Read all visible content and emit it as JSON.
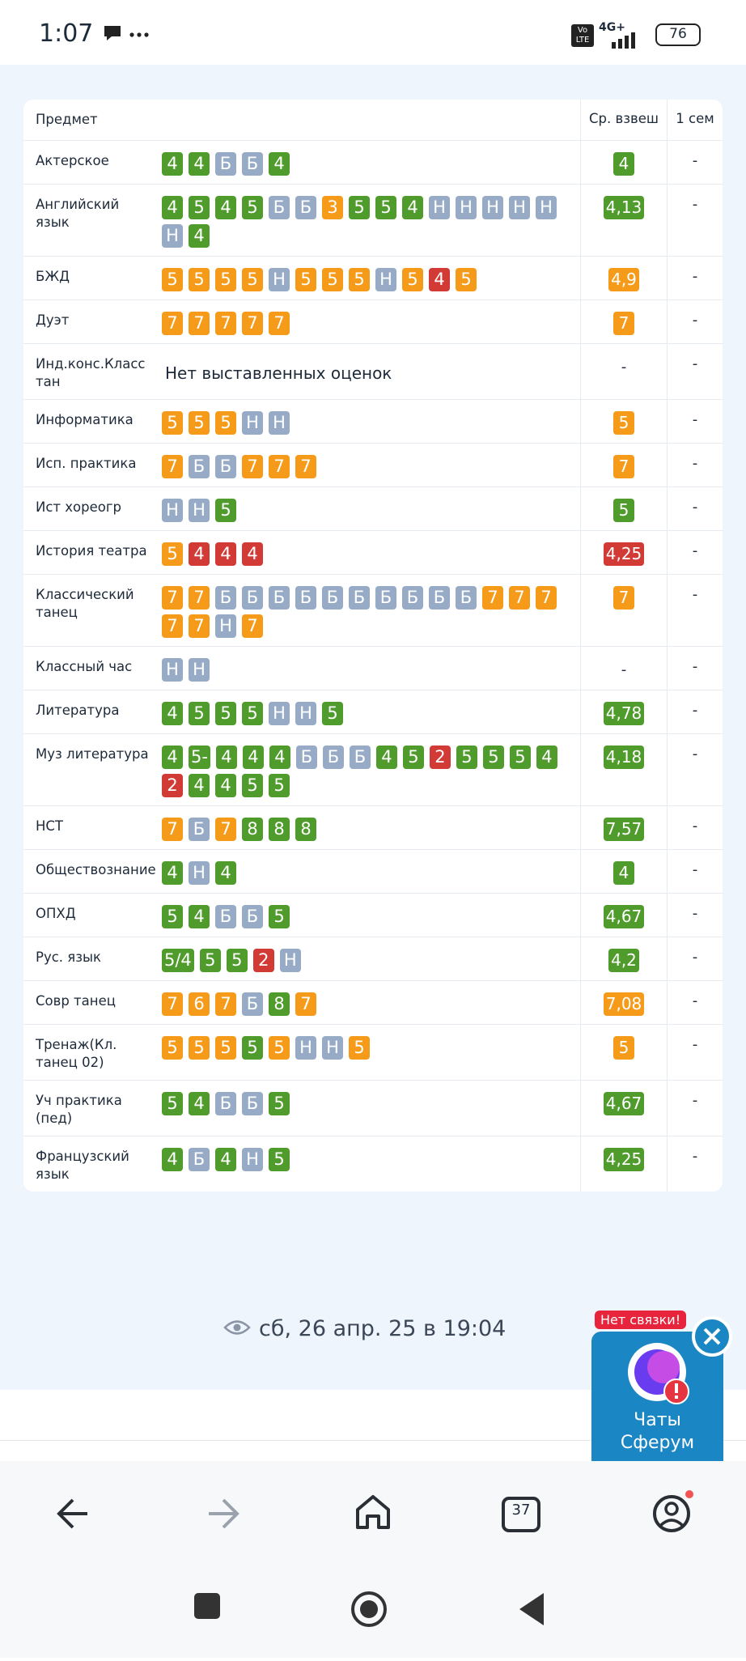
{
  "status_bar": {
    "time": "1:07",
    "volte": "Vo LTE",
    "network": "4G+",
    "battery": "76"
  },
  "palette": {
    "green": "#4f9b2c",
    "orange": "#f59b19",
    "red": "#d23a36",
    "slate": "#97abc7"
  },
  "table": {
    "headers": [
      "Предмет",
      "Ср. взвеш",
      "1 сем"
    ],
    "rows": [
      {
        "subject": "Актерское",
        "grades": [
          "4",
          "4",
          "Б",
          "Б",
          "4"
        ],
        "grade_colors": [
          "green",
          "green",
          "slate",
          "slate",
          "green"
        ],
        "average": "4",
        "average_color": "green",
        "semester": "-"
      },
      {
        "subject": "Английский язык",
        "grades": [
          "4",
          "5",
          "4",
          "5",
          "Б",
          "Б",
          "3",
          "5",
          "5",
          "4",
          "Н",
          "Н",
          "Н",
          "Н",
          "Н",
          "Н",
          "4"
        ],
        "grade_colors": [
          "green",
          "green",
          "green",
          "green",
          "slate",
          "slate",
          "orange",
          "green",
          "green",
          "green",
          "slate",
          "slate",
          "slate",
          "slate",
          "slate",
          "slate",
          "green"
        ],
        "average": "4,13",
        "average_color": "green",
        "semester": "-"
      },
      {
        "subject": "БЖД",
        "grades": [
          "5",
          "5",
          "5",
          "5",
          "Н",
          "5",
          "5",
          "5",
          "Н",
          "5",
          "4",
          "5"
        ],
        "grade_colors": [
          "orange",
          "orange",
          "orange",
          "orange",
          "slate",
          "orange",
          "orange",
          "orange",
          "slate",
          "orange",
          "red",
          "orange"
        ],
        "average": "4,9",
        "average_color": "orange",
        "semester": "-"
      },
      {
        "subject": "Дуэт",
        "grades": [
          "7",
          "7",
          "7",
          "7",
          "7"
        ],
        "grade_colors": [
          "orange",
          "orange",
          "orange",
          "orange",
          "orange"
        ],
        "average": "7",
        "average_color": "orange",
        "semester": "-"
      },
      {
        "subject": "Инд.конс.Класс тан",
        "note": "Нет выставленных оценок",
        "average": "-",
        "semester": "-"
      },
      {
        "subject": "Информатика",
        "grades": [
          "5",
          "5",
          "5",
          "Н",
          "Н"
        ],
        "grade_colors": [
          "orange",
          "orange",
          "orange",
          "slate",
          "slate"
        ],
        "average": "5",
        "average_color": "orange",
        "semester": "-"
      },
      {
        "subject": "Исп. практика",
        "grades": [
          "7",
          "Б",
          "Б",
          "7",
          "7",
          "7"
        ],
        "grade_colors": [
          "orange",
          "slate",
          "slate",
          "orange",
          "orange",
          "orange"
        ],
        "average": "7",
        "average_color": "orange",
        "semester": "-"
      },
      {
        "subject": "Ист хореогр",
        "grades": [
          "Н",
          "Н",
          "5"
        ],
        "grade_colors": [
          "slate",
          "slate",
          "green"
        ],
        "average": "5",
        "average_color": "green",
        "semester": "-"
      },
      {
        "subject": "История театра",
        "grades": [
          "5",
          "4",
          "4",
          "4"
        ],
        "grade_colors": [
          "orange",
          "red",
          "red",
          "red"
        ],
        "average": "4,25",
        "average_color": "red",
        "semester": "-"
      },
      {
        "subject": "Классический танец",
        "grades": [
          "7",
          "7",
          "Б",
          "Б",
          "Б",
          "Б",
          "Б",
          "Б",
          "Б",
          "Б",
          "Б",
          "Б",
          "7",
          "7",
          "7",
          "7",
          "7",
          "Н",
          "7"
        ],
        "grade_colors": [
          "orange",
          "orange",
          "slate",
          "slate",
          "slate",
          "slate",
          "slate",
          "slate",
          "slate",
          "slate",
          "slate",
          "slate",
          "orange",
          "orange",
          "orange",
          "orange",
          "orange",
          "slate",
          "orange"
        ],
        "average": "7",
        "average_color": "orange",
        "semester": "-"
      },
      {
        "subject": "Классный час",
        "grades": [
          "Н",
          "Н"
        ],
        "grade_colors": [
          "slate",
          "slate"
        ],
        "average": "-",
        "semester": "-"
      },
      {
        "subject": "Литература",
        "grades": [
          "4",
          "5",
          "5",
          "5",
          "Н",
          "Н",
          "5"
        ],
        "grade_colors": [
          "green",
          "green",
          "green",
          "green",
          "slate",
          "slate",
          "green"
        ],
        "average": "4,78",
        "average_color": "green",
        "semester": "-"
      },
      {
        "subject": "Муз литература",
        "grades": [
          "4",
          "5-",
          "4",
          "4",
          "4",
          "Б",
          "Б",
          "Б",
          "4",
          "5",
          "2",
          "5",
          "5",
          "5",
          "4",
          "2",
          "4",
          "4",
          "5",
          "5"
        ],
        "grade_colors": [
          "green",
          "green",
          "green",
          "green",
          "green",
          "slate",
          "slate",
          "slate",
          "green",
          "green",
          "red",
          "green",
          "green",
          "green",
          "green",
          "red",
          "green",
          "green",
          "green",
          "green"
        ],
        "average": "4,18",
        "average_color": "green",
        "semester": "-"
      },
      {
        "subject": "НСТ",
        "grades": [
          "7",
          "Б",
          "7",
          "8",
          "8",
          "8"
        ],
        "grade_colors": [
          "orange",
          "slate",
          "orange",
          "green",
          "green",
          "green"
        ],
        "average": "7,57",
        "average_color": "green",
        "semester": "-"
      },
      {
        "subject": "Обществознание",
        "grades": [
          "4",
          "Н",
          "4"
        ],
        "grade_colors": [
          "green",
          "slate",
          "green"
        ],
        "average": "4",
        "average_color": "green",
        "semester": "-"
      },
      {
        "subject": "ОПХД",
        "grades": [
          "5",
          "4",
          "Б",
          "Б",
          "5"
        ],
        "grade_colors": [
          "green",
          "green",
          "slate",
          "slate",
          "green"
        ],
        "average": "4,67",
        "average_color": "green",
        "semester": "-"
      },
      {
        "subject": "Рус. язык",
        "grades": [
          "5/4",
          "5",
          "5",
          "2",
          "Н"
        ],
        "grade_colors": [
          "green",
          "green",
          "green",
          "red",
          "slate"
        ],
        "average": "4,2",
        "average_color": "green",
        "semester": "-"
      },
      {
        "subject": "Совр танец",
        "grades": [
          "7",
          "6",
          "7",
          "Б",
          "8",
          "7"
        ],
        "grade_colors": [
          "orange",
          "orange",
          "orange",
          "slate",
          "green",
          "orange"
        ],
        "average": "7,08",
        "average_color": "orange",
        "semester": "-"
      },
      {
        "subject": "Тренаж(Кл. танец 02)",
        "grades": [
          "5",
          "5",
          "5",
          "5",
          "5",
          "Н",
          "Н",
          "5"
        ],
        "grade_colors": [
          "orange",
          "orange",
          "orange",
          "green",
          "orange",
          "slate",
          "slate",
          "orange"
        ],
        "average": "5",
        "average_color": "orange",
        "semester": "-"
      },
      {
        "subject": "Уч практика (пед)",
        "grades": [
          "5",
          "4",
          "Б",
          "Б",
          "5"
        ],
        "grade_colors": [
          "green",
          "green",
          "slate",
          "slate",
          "green"
        ],
        "average": "4,67",
        "average_color": "green",
        "semester": "-"
      },
      {
        "subject": "Французский язык",
        "grades": [
          "4",
          "Б",
          "4",
          "Н",
          "5"
        ],
        "grade_colors": [
          "green",
          "slate",
          "green",
          "slate",
          "green"
        ],
        "average": "4,25",
        "average_color": "green",
        "semester": "-"
      }
    ]
  },
  "footer": {
    "updated": "сб, 26 апр. 25 в 19:04"
  },
  "chat": {
    "status": "Нет связки!",
    "label": "Чаты Сферум"
  },
  "nav": {
    "tabs": "37"
  }
}
